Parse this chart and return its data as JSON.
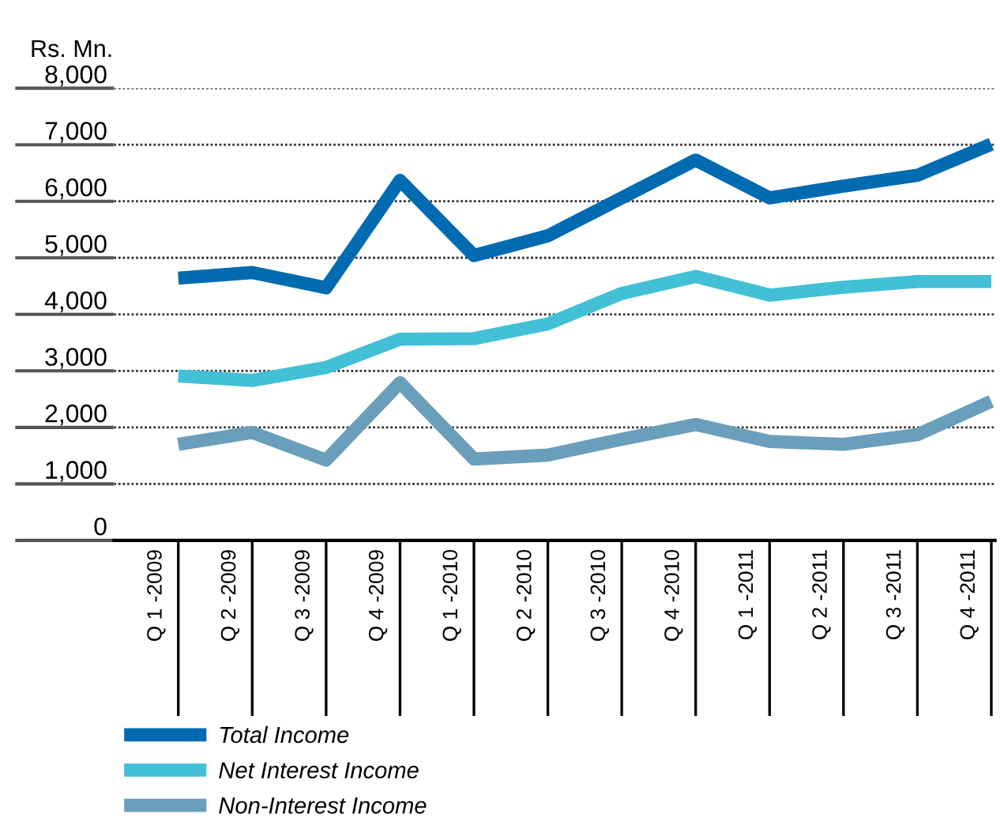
{
  "chart_data": {
    "type": "line",
    "ylabel": "Rs. Mn.",
    "categories": [
      "Q 1 -2009",
      "Q 2 -2009",
      "Q 3 -2009",
      "Q 4 -2009",
      "Q 1 -2010",
      "Q 2 -2010",
      "Q 3 -2010",
      "Q 4 -2010",
      "Q 1 -2011",
      "Q 2 -2011",
      "Q 3 -2011",
      "Q 4 -2011"
    ],
    "series": [
      {
        "name": "Total Income",
        "color": "#006bb0",
        "values": [
          4640,
          4740,
          4470,
          6370,
          5040,
          5390,
          6060,
          6730,
          6060,
          6270,
          6460,
          7010
        ]
      },
      {
        "name": "Net Interest Income",
        "color": "#42c0d6",
        "values": [
          2910,
          2830,
          3060,
          3560,
          3570,
          3830,
          4370,
          4670,
          4340,
          4480,
          4580,
          4580
        ]
      },
      {
        "name": "Non-Interest Income",
        "color": "#6a9fbb",
        "values": [
          1700,
          1910,
          1420,
          2790,
          1440,
          1510,
          1790,
          2050,
          1750,
          1700,
          1870,
          2460
        ]
      }
    ],
    "ylim": [
      0,
      8000
    ],
    "yticks": [
      {
        "value": 0,
        "label": "0"
      },
      {
        "value": 1000,
        "label": "1,000"
      },
      {
        "value": 2000,
        "label": "2,000"
      },
      {
        "value": 3000,
        "label": "3,000"
      },
      {
        "value": 4000,
        "label": "4,000"
      },
      {
        "value": 5000,
        "label": "5,000"
      },
      {
        "value": 6000,
        "label": "6,000"
      },
      {
        "value": 7000,
        "label": "7,000"
      },
      {
        "value": 8000,
        "label": "8,000"
      }
    ],
    "grid": "y",
    "legend": "bottom",
    "marker": "none",
    "line_style": "solid"
  }
}
